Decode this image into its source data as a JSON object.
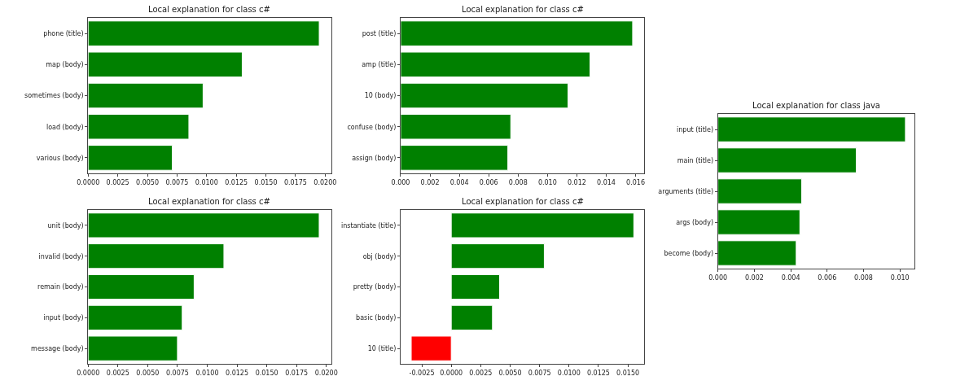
{
  "chart_data": [
    {
      "type": "bar",
      "orientation": "horizontal",
      "title": "Local explanation for class c#",
      "categories": [
        "phone (title)",
        "map (body)",
        "sometimes (body)",
        "load (body)",
        "various (body)"
      ],
      "values": [
        0.0195,
        0.013,
        0.0097,
        0.0085,
        0.0071
      ],
      "colors": [
        "#008000",
        "#008000",
        "#008000",
        "#008000",
        "#008000"
      ],
      "xlim": [
        0,
        0.0205
      ],
      "xticks": [
        {
          "value": 0,
          "label": "0.0000"
        },
        {
          "value": 0.0025,
          "label": "0.0025"
        },
        {
          "value": 0.005,
          "label": "0.0050"
        },
        {
          "value": 0.0075,
          "label": "0.0075"
        },
        {
          "value": 0.01,
          "label": "0.0100"
        },
        {
          "value": 0.0125,
          "label": "0.0125"
        },
        {
          "value": 0.015,
          "label": "0.0150"
        },
        {
          "value": 0.0175,
          "label": "0.0175"
        },
        {
          "value": 0.02,
          "label": "0.0200"
        }
      ]
    },
    {
      "type": "bar",
      "orientation": "horizontal",
      "title": "Local explanation for class c#",
      "categories": [
        "post (title)",
        "amp (title)",
        "10 (body)",
        "confuse (body)",
        "assign (body)"
      ],
      "values": [
        0.0158,
        0.0129,
        0.0114,
        0.0075,
        0.0073
      ],
      "colors": [
        "#008000",
        "#008000",
        "#008000",
        "#008000",
        "#008000"
      ],
      "xlim": [
        0,
        0.0166
      ],
      "xticks": [
        {
          "value": 0,
          "label": "0.000"
        },
        {
          "value": 0.002,
          "label": "0.002"
        },
        {
          "value": 0.004,
          "label": "0.004"
        },
        {
          "value": 0.006,
          "label": "0.006"
        },
        {
          "value": 0.008,
          "label": "0.008"
        },
        {
          "value": 0.01,
          "label": "0.010"
        },
        {
          "value": 0.012,
          "label": "0.012"
        },
        {
          "value": 0.014,
          "label": "0.014"
        },
        {
          "value": 0.016,
          "label": "0.016"
        }
      ]
    },
    {
      "type": "bar",
      "orientation": "horizontal",
      "title": "Local explanation for class java",
      "categories": [
        "input (title)",
        "main (title)",
        "arguments (title)",
        "args (body)",
        "become (body)"
      ],
      "values": [
        0.0103,
        0.0076,
        0.0046,
        0.0045,
        0.0043
      ],
      "colors": [
        "#008000",
        "#008000",
        "#008000",
        "#008000",
        "#008000"
      ],
      "xlim": [
        0,
        0.0108
      ],
      "xticks": [
        {
          "value": 0,
          "label": "0.000"
        },
        {
          "value": 0.002,
          "label": "0.002"
        },
        {
          "value": 0.004,
          "label": "0.004"
        },
        {
          "value": 0.006,
          "label": "0.006"
        },
        {
          "value": 0.008,
          "label": "0.008"
        },
        {
          "value": 0.01,
          "label": "0.010"
        }
      ]
    },
    {
      "type": "bar",
      "orientation": "horizontal",
      "title": "Local explanation for class c#",
      "categories": [
        "unit (body)",
        "invalid (body)",
        "remain (body)",
        "input (body)",
        "message (body)"
      ],
      "values": [
        0.0194,
        0.0114,
        0.0089,
        0.0079,
        0.0075
      ],
      "colors": [
        "#008000",
        "#008000",
        "#008000",
        "#008000",
        "#008000"
      ],
      "xlim": [
        0,
        0.0204
      ],
      "xticks": [
        {
          "value": 0,
          "label": "0.0000"
        },
        {
          "value": 0.0025,
          "label": "0.0025"
        },
        {
          "value": 0.005,
          "label": "0.0050"
        },
        {
          "value": 0.0075,
          "label": "0.0075"
        },
        {
          "value": 0.01,
          "label": "0.0100"
        },
        {
          "value": 0.0125,
          "label": "0.0125"
        },
        {
          "value": 0.015,
          "label": "0.0150"
        },
        {
          "value": 0.0175,
          "label": "0.0175"
        },
        {
          "value": 0.02,
          "label": "0.0200"
        }
      ]
    },
    {
      "type": "bar",
      "orientation": "horizontal",
      "title": "Local explanation for class c#",
      "categories": [
        "instantiate (title)",
        "obj (body)",
        "pretty (body)",
        "basic (body)",
        "10 (title)"
      ],
      "values": [
        0.0155,
        0.0079,
        0.0041,
        0.0035,
        -0.0034
      ],
      "colors": [
        "#008000",
        "#008000",
        "#008000",
        "#008000",
        "#ff0000"
      ],
      "xlim": [
        -0.0043,
        0.0164
      ],
      "xticks": [
        {
          "value": -0.0025,
          "label": "-0.0025"
        },
        {
          "value": 0,
          "label": "0.0000"
        },
        {
          "value": 0.0025,
          "label": "0.0025"
        },
        {
          "value": 0.005,
          "label": "0.0050"
        },
        {
          "value": 0.0075,
          "label": "0.0075"
        },
        {
          "value": 0.01,
          "label": "0.0100"
        },
        {
          "value": 0.0125,
          "label": "0.0125"
        },
        {
          "value": 0.015,
          "label": "0.0150"
        }
      ]
    }
  ]
}
